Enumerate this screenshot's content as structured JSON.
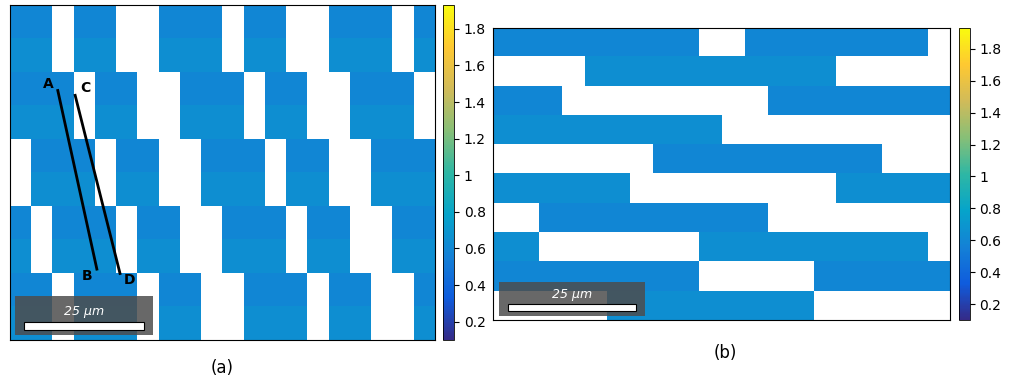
{
  "chart_data": [
    {
      "type": "heatmap",
      "caption": "(a)",
      "tick_labels": false,
      "xlim": [
        0,
        88
      ],
      "ylim": [
        0,
        69
      ],
      "color_range": [
        0.1,
        1.93
      ],
      "color_ticks": [
        0.2,
        0.4,
        0.6,
        0.8,
        1,
        1.2,
        1.4,
        1.6,
        1.8
      ],
      "scale_bar": {
        "length": 25,
        "label": "25 μm"
      },
      "lines": [
        {
          "from": "A",
          "to": "B",
          "x": [
            9.9,
            18.0
          ],
          "y": [
            51.4,
            14.6
          ]
        },
        {
          "from": "C",
          "to": "D",
          "x": [
            13.5,
            22.8
          ],
          "y": [
            50.4,
            13.7
          ]
        }
      ],
      "cells": [
        [
          0.6,
          0.6,
          null,
          0.6,
          0.6,
          null,
          null,
          0.6,
          0.6,
          0.6,
          null,
          0.6,
          0.6,
          null,
          null,
          0.6,
          0.6,
          0.6,
          null,
          0.6
        ],
        [
          0.65,
          0.65,
          null,
          0.65,
          0.65,
          null,
          null,
          0.65,
          0.65,
          0.65,
          null,
          0.65,
          0.65,
          null,
          null,
          0.65,
          0.65,
          0.65,
          null,
          0.65
        ],
        [
          0.6,
          0.6,
          0.6,
          null,
          0.6,
          0.6,
          null,
          null,
          0.6,
          0.6,
          0.6,
          null,
          0.6,
          0.6,
          null,
          null,
          0.6,
          0.6,
          0.6,
          null
        ],
        [
          0.65,
          0.65,
          0.65,
          null,
          0.65,
          0.65,
          null,
          null,
          0.65,
          0.65,
          0.65,
          null,
          0.65,
          0.65,
          null,
          null,
          0.65,
          0.65,
          0.65,
          null
        ],
        [
          null,
          0.6,
          0.6,
          0.6,
          null,
          0.6,
          0.6,
          null,
          null,
          0.6,
          0.6,
          0.6,
          null,
          0.6,
          0.6,
          null,
          null,
          0.6,
          0.6,
          0.6
        ],
        [
          null,
          0.65,
          0.65,
          0.65,
          null,
          0.65,
          0.65,
          null,
          null,
          0.65,
          0.65,
          0.65,
          null,
          0.65,
          0.65,
          null,
          null,
          0.65,
          0.65,
          0.65
        ],
        [
          0.6,
          null,
          0.6,
          0.6,
          0.6,
          null,
          0.6,
          0.6,
          null,
          null,
          0.6,
          0.6,
          0.6,
          null,
          0.6,
          0.6,
          null,
          null,
          0.6,
          0.6
        ],
        [
          0.65,
          null,
          0.65,
          0.65,
          0.65,
          null,
          0.65,
          0.65,
          null,
          null,
          0.65,
          0.65,
          0.65,
          null,
          0.65,
          0.65,
          null,
          null,
          0.65,
          0.65
        ],
        [
          0.6,
          0.6,
          null,
          0.6,
          0.6,
          0.6,
          null,
          0.6,
          0.6,
          null,
          null,
          0.6,
          0.6,
          0.6,
          null,
          0.6,
          0.6,
          null,
          null,
          0.6
        ],
        [
          0.65,
          0.65,
          null,
          0.65,
          0.65,
          0.65,
          null,
          0.65,
          0.65,
          null,
          null,
          0.65,
          0.65,
          0.65,
          null,
          0.65,
          0.65,
          null,
          null,
          0.65
        ]
      ]
    },
    {
      "type": "heatmap",
      "caption": "(b)",
      "tick_labels": false,
      "xlim": [
        0,
        89
      ],
      "ylim": [
        0,
        57
      ],
      "color_range": [
        0.1,
        1.93
      ],
      "color_ticks": [
        0.2,
        0.4,
        0.6,
        0.8,
        1,
        1.2,
        1.4,
        1.6,
        1.8
      ],
      "scale_bar": {
        "length": 25,
        "label": "25 μm"
      },
      "lines": [],
      "cells": [
        [
          0.6,
          0.6,
          0.6,
          0.6,
          0.6,
          0.6,
          0.6,
          0.6,
          0.6,
          null,
          null,
          0.6,
          0.6,
          0.6,
          0.6,
          0.6,
          0.6,
          0.6,
          0.6,
          null
        ],
        [
          null,
          null,
          null,
          null,
          0.65,
          0.65,
          0.65,
          0.65,
          0.65,
          0.65,
          0.65,
          0.65,
          0.65,
          0.65,
          0.65,
          null,
          null,
          null,
          null,
          null
        ],
        [
          0.6,
          0.6,
          0.6,
          null,
          null,
          null,
          null,
          null,
          null,
          null,
          null,
          null,
          0.6,
          0.6,
          0.6,
          0.6,
          0.6,
          0.6,
          0.6,
          0.6
        ],
        [
          0.65,
          0.65,
          0.65,
          0.65,
          0.65,
          0.65,
          0.65,
          0.65,
          0.65,
          0.65,
          null,
          null,
          null,
          null,
          null,
          null,
          null,
          null,
          null,
          null
        ],
        [
          null,
          null,
          null,
          null,
          null,
          null,
          null,
          0.6,
          0.6,
          0.6,
          0.6,
          0.6,
          0.6,
          0.6,
          0.6,
          0.6,
          0.6,
          null,
          null,
          null
        ],
        [
          0.65,
          0.65,
          0.65,
          0.65,
          0.65,
          0.65,
          null,
          null,
          null,
          null,
          null,
          null,
          null,
          null,
          null,
          0.65,
          0.65,
          0.65,
          0.65,
          0.65
        ],
        [
          null,
          null,
          0.6,
          0.6,
          0.6,
          0.6,
          0.6,
          0.6,
          0.6,
          0.6,
          0.6,
          0.6,
          null,
          null,
          null,
          null,
          null,
          null,
          null,
          null
        ],
        [
          0.65,
          0.65,
          null,
          null,
          null,
          null,
          null,
          null,
          null,
          0.65,
          0.65,
          0.65,
          0.65,
          0.65,
          0.65,
          0.65,
          0.65,
          0.65,
          0.65,
          null
        ],
        [
          0.6,
          0.6,
          0.6,
          0.6,
          0.6,
          0.6,
          0.6,
          0.6,
          0.6,
          null,
          null,
          null,
          null,
          null,
          0.6,
          0.6,
          0.6,
          0.6,
          0.6,
          0.6
        ],
        [
          null,
          null,
          null,
          null,
          null,
          0.65,
          0.65,
          0.65,
          0.65,
          0.65,
          0.65,
          0.65,
          0.65,
          0.65,
          null,
          null,
          null,
          null,
          null,
          null
        ]
      ]
    }
  ]
}
